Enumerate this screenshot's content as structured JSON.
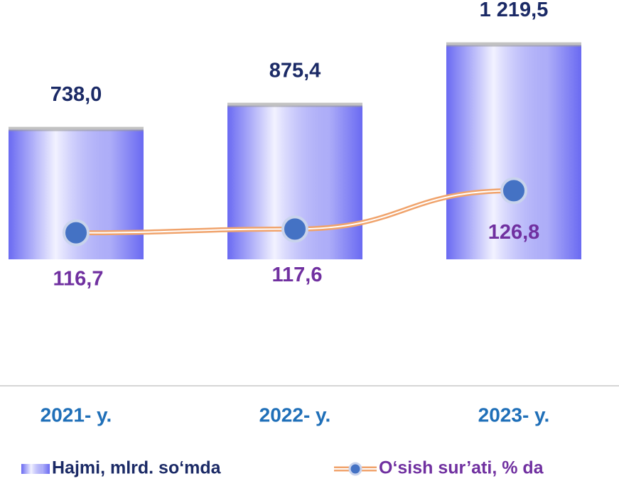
{
  "chart_data": {
    "type": "bar",
    "categories": [
      "2021- y.",
      "2022- y.",
      "2023- y."
    ],
    "series": [
      {
        "name": "Hajmi, mlrd. so‘mda",
        "type": "bar",
        "color": "#6a6af2",
        "values": [
          738.0,
          875.4,
          1219.5
        ],
        "value_labels": [
          "738,0",
          "875,4",
          "1 219,5"
        ]
      },
      {
        "name": "O‘sish sur’ati, % da",
        "type": "line",
        "axis": "y2",
        "color": "#f0a36c",
        "marker_color": "#4472c4",
        "values": [
          116.7,
          117.6,
          126.8
        ],
        "value_labels": [
          "116,7",
          "117,6",
          "126,8"
        ]
      }
    ],
    "ylim": [
      -720,
      1250
    ],
    "y2lim": [
      80,
      163
    ],
    "legend": "bottom"
  }
}
